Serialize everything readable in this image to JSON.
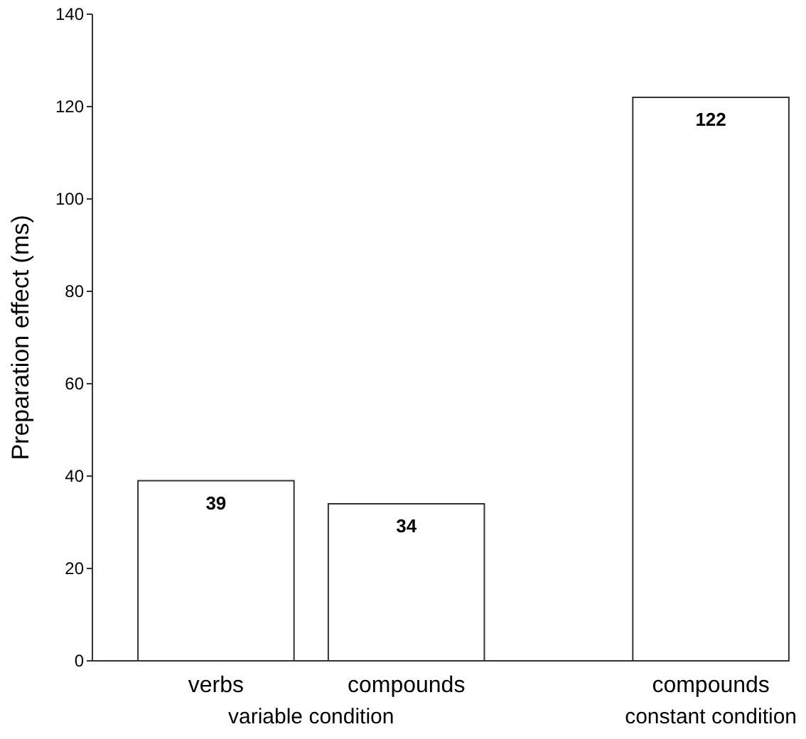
{
  "chart_data": {
    "type": "bar",
    "ylabel": "Preparation effect (ms)",
    "categories": [
      "verbs",
      "compounds",
      "compounds"
    ],
    "values": [
      39,
      34,
      122
    ],
    "color": "#ffffff",
    "ylim": [
      0,
      140
    ],
    "yticks": [
      0,
      20,
      40,
      60,
      80,
      100,
      120,
      140
    ],
    "grid": false,
    "data_labels": true,
    "annotations": [
      "variable condition",
      "constant condition"
    ]
  }
}
